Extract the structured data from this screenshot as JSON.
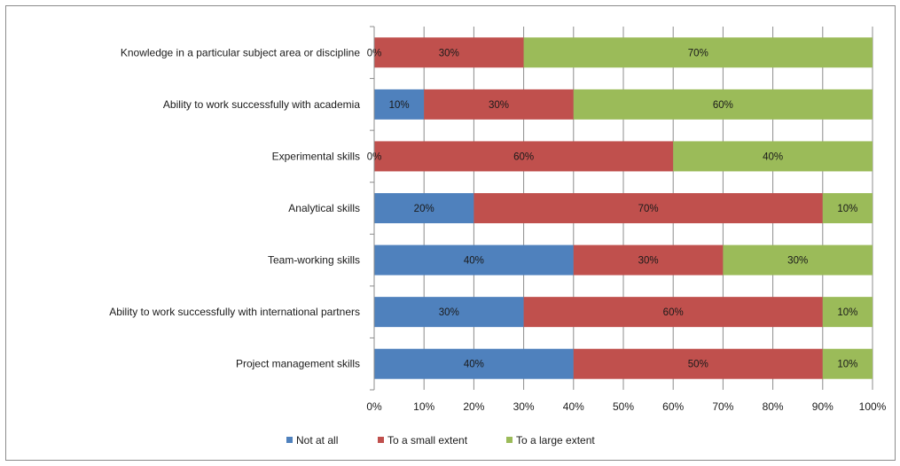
{
  "chart_data": {
    "type": "bar",
    "orientation": "horizontal",
    "stacked": true,
    "title": "",
    "xlabel": "",
    "ylabel": "",
    "xlim": [
      0,
      100
    ],
    "unit": "%",
    "grid": true,
    "legend_position": "bottom",
    "categories": [
      "Knowledge in a particular subject area or discipline",
      "Ability to work successfully with academia",
      "Experimental skills",
      "Analytical skills",
      "Team-working skills",
      "Ability to work successfully with international partners",
      "Project management skills"
    ],
    "x_ticks": [
      "0%",
      "10%",
      "20%",
      "30%",
      "40%",
      "50%",
      "60%",
      "70%",
      "80%",
      "90%",
      "100%"
    ],
    "series": [
      {
        "name": "Not at all",
        "color": "#4f81bd",
        "values": [
          0,
          10,
          0,
          20,
          40,
          30,
          40
        ]
      },
      {
        "name": "To a small extent",
        "color": "#c0504d",
        "values": [
          30,
          30,
          60,
          70,
          30,
          60,
          50
        ]
      },
      {
        "name": "To a large extent",
        "color": "#9bbb59",
        "values": [
          70,
          60,
          40,
          10,
          30,
          10,
          10
        ]
      }
    ]
  }
}
